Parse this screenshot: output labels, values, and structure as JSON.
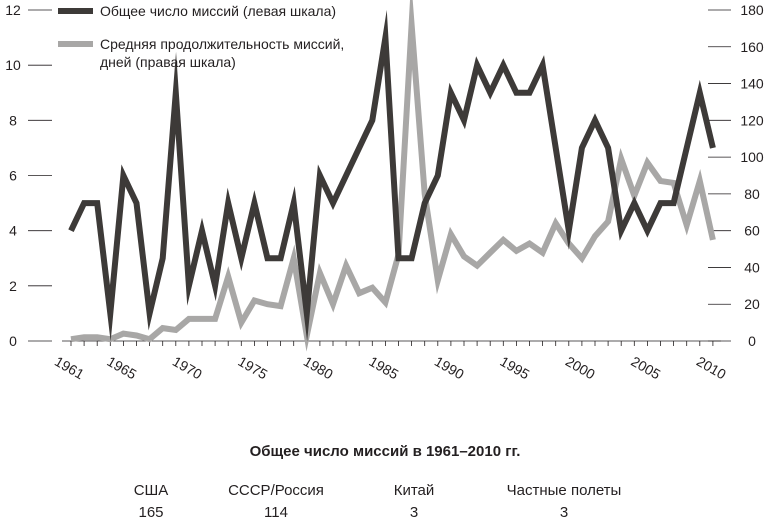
{
  "chart_data": {
    "type": "line",
    "x": [
      1961,
      1962,
      1963,
      1964,
      1965,
      1966,
      1967,
      1968,
      1969,
      1970,
      1971,
      1972,
      1973,
      1974,
      1975,
      1976,
      1977,
      1978,
      1979,
      1980,
      1981,
      1982,
      1983,
      1984,
      1985,
      1986,
      1987,
      1988,
      1989,
      1990,
      1991,
      1992,
      1993,
      1994,
      1995,
      1996,
      1997,
      1998,
      1999,
      2000,
      2001,
      2002,
      2003,
      2004,
      2005,
      2006,
      2007,
      2008,
      2009,
      2010
    ],
    "xticks": [
      "1961",
      "1965",
      "1970",
      "1975",
      "1980",
      "1985",
      "1990",
      "1995",
      "2000",
      "2005",
      "2010"
    ],
    "xtick_values": [
      1961,
      1965,
      1970,
      1975,
      1980,
      1985,
      1990,
      1995,
      2000,
      2005,
      2010
    ],
    "series": [
      {
        "name": "Общее число миссий (левая шкала)",
        "axis": "left",
        "color": "#3d3a38",
        "values": [
          4,
          5,
          5,
          1,
          6,
          5,
          1,
          3,
          9,
          2,
          4,
          2,
          5,
          3,
          5,
          3,
          3,
          5,
          1,
          6,
          5,
          6,
          7,
          8,
          11,
          3,
          3,
          5,
          6,
          9,
          8,
          10,
          9,
          10,
          9,
          9,
          10,
          7,
          4,
          7,
          8,
          7,
          4,
          5,
          4,
          5,
          5,
          7,
          9,
          7
        ]
      },
      {
        "name": "Средняя продолжительность миссий, дней (правая шкала)",
        "axis": "right",
        "color": "#a8a7a6",
        "values": [
          1,
          2,
          2,
          1,
          4,
          3,
          1,
          7,
          6,
          12,
          12,
          12,
          35,
          10,
          22,
          20,
          19,
          45,
          3,
          37,
          20,
          41,
          26,
          29,
          21,
          47,
          172,
          80,
          33,
          58,
          46,
          41,
          48,
          55,
          49,
          53,
          48,
          64,
          53,
          45,
          57,
          65,
          99,
          79,
          97,
          87,
          86,
          63,
          87,
          55
        ]
      }
    ],
    "left_axis": {
      "ticks": [
        "0",
        "2",
        "4",
        "6",
        "8",
        "10",
        "12"
      ],
      "ylim": [
        0,
        12
      ]
    },
    "right_axis": {
      "ticks": [
        "0",
        "20",
        "40",
        "60",
        "80",
        "100",
        "120",
        "140",
        "160",
        "180"
      ],
      "ylim": [
        0,
        180
      ]
    },
    "legend_placement": "top-left"
  },
  "caption": "Общее число миссий в 1961–2010 гг.",
  "stats": [
    {
      "name": "США",
      "value": "165"
    },
    {
      "name": "СССР/Россия",
      "value": "114"
    },
    {
      "name": "Китай",
      "value": "3"
    },
    {
      "name": "Частные полеты",
      "value": "3"
    }
  ],
  "legend": {
    "line1": "Общее число миссий (левая шкала)",
    "line2a": "Средняя продолжительность миссий,",
    "line2b": "дней (правая шкала)"
  }
}
